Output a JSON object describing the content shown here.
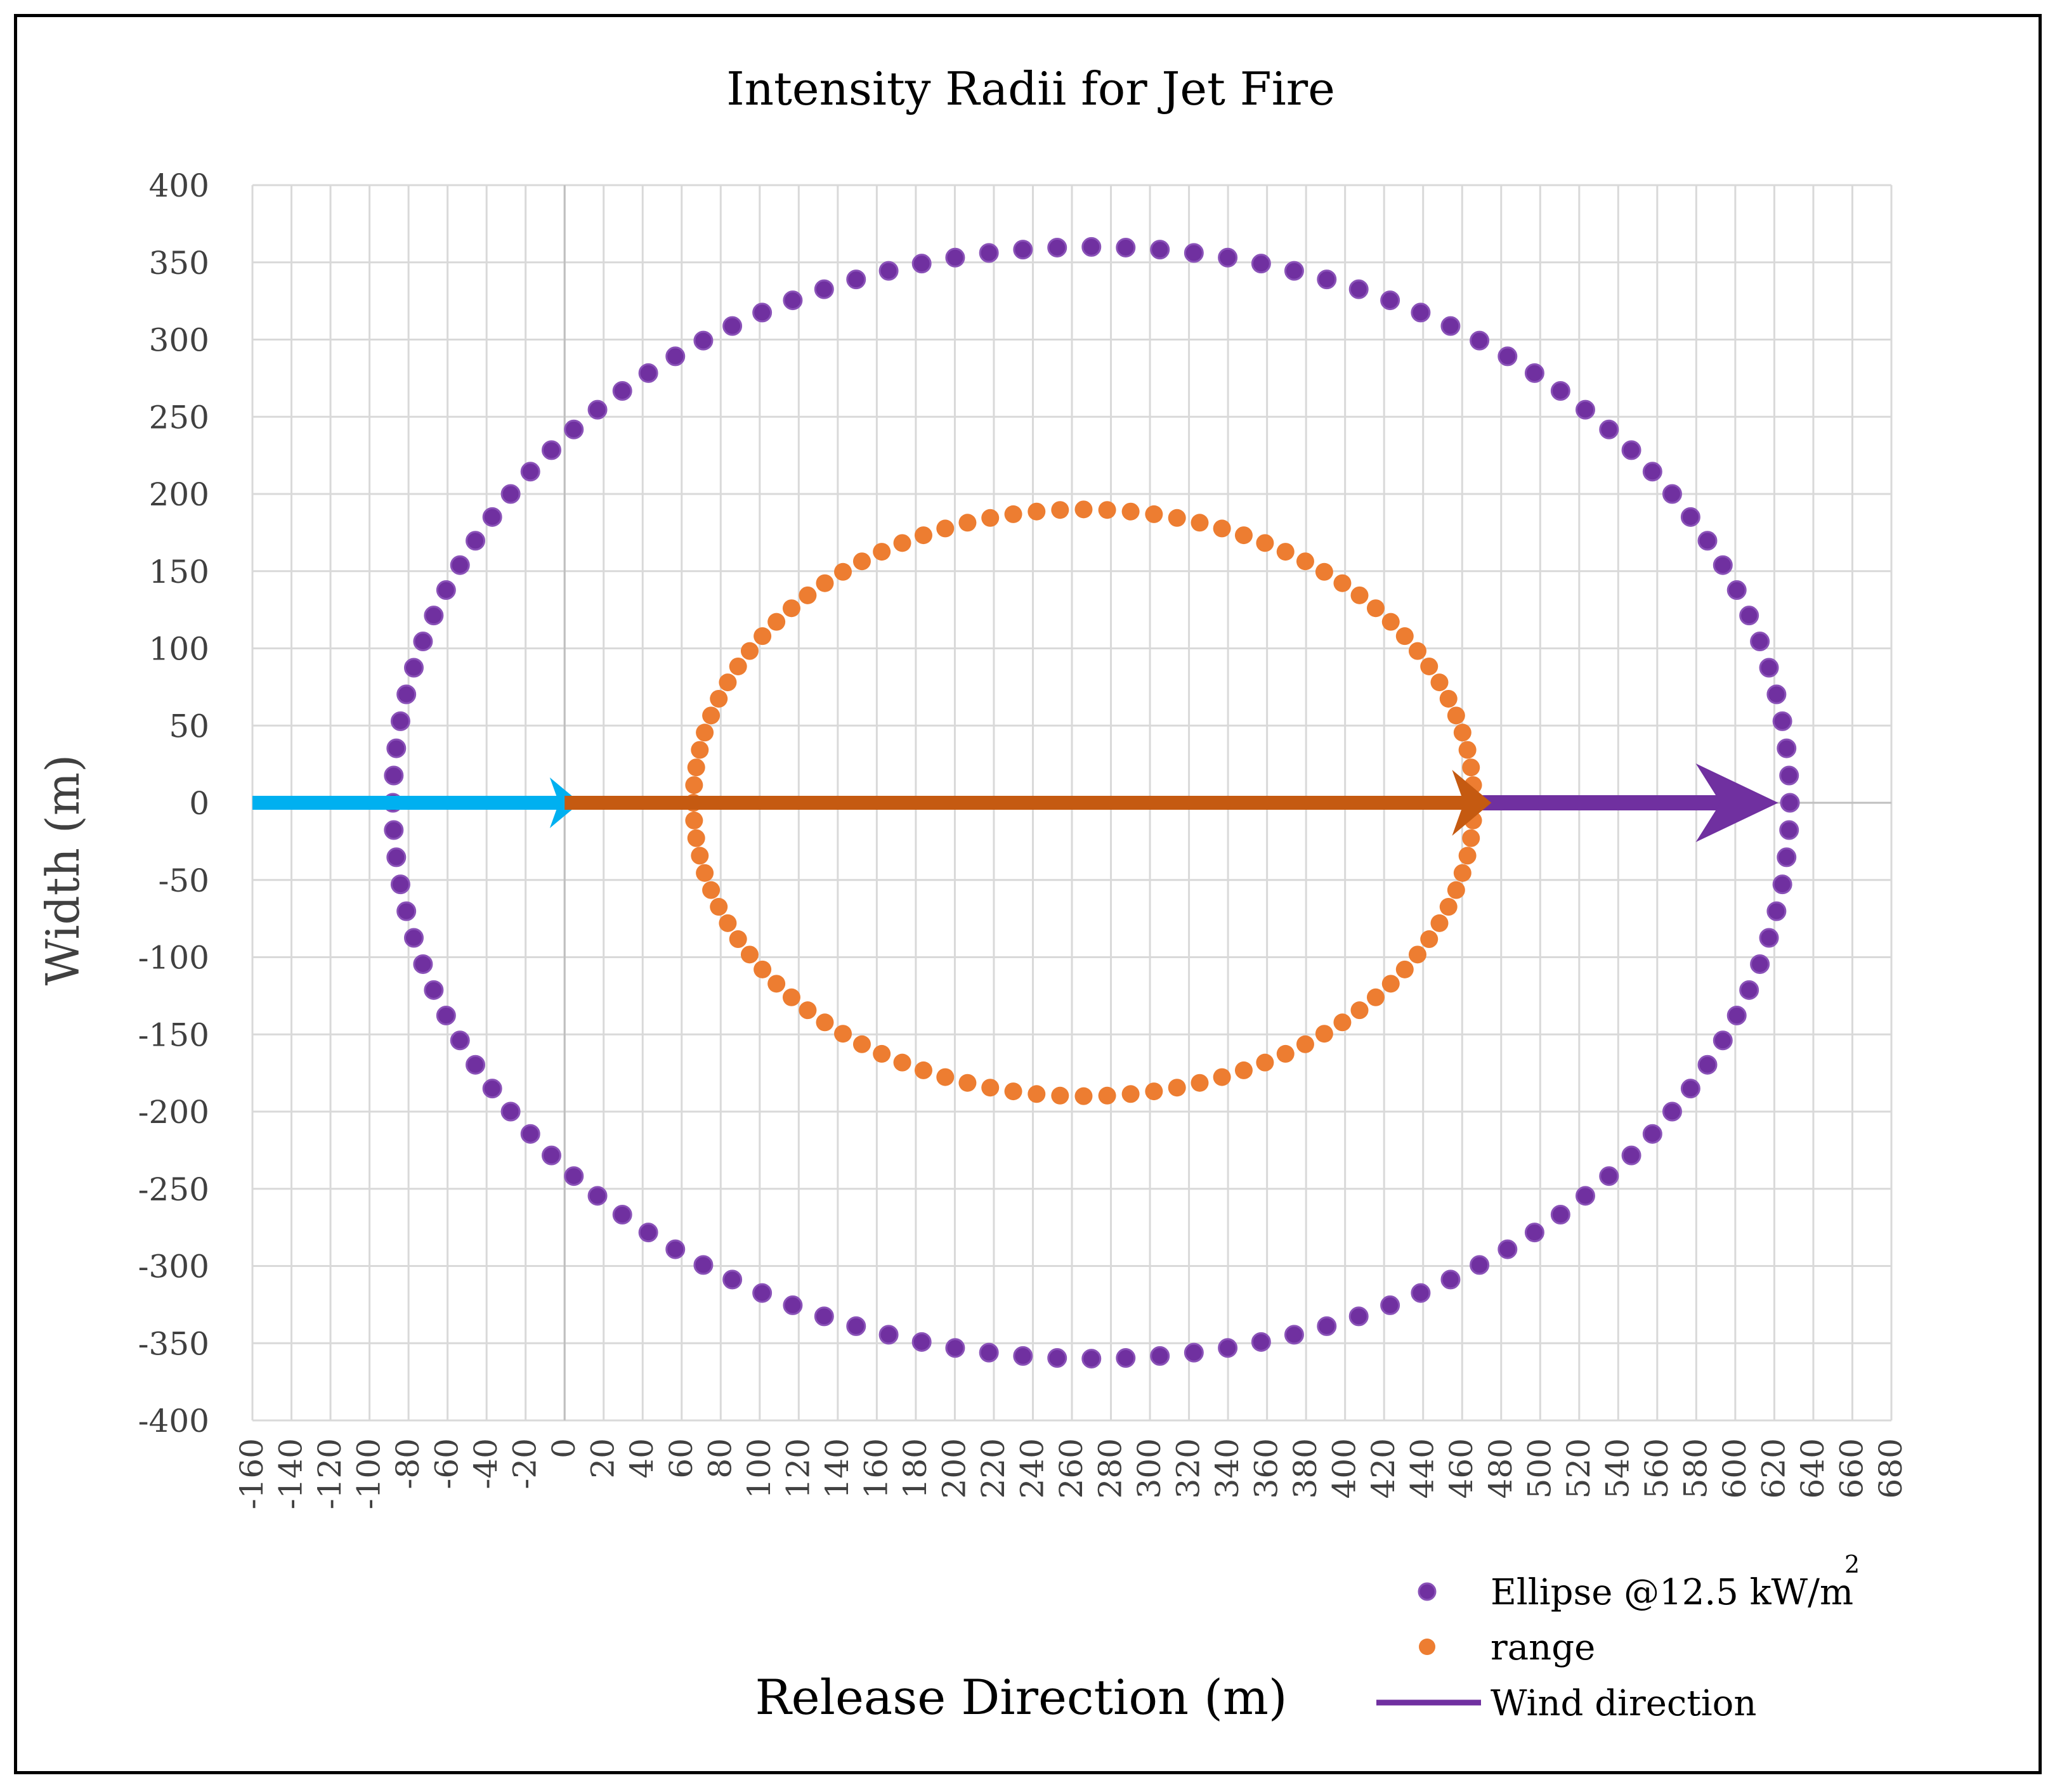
{
  "chart_data": {
    "type": "scatter",
    "title": "Intensity Radii for Jet Fire",
    "xlabel": "Release Direction (m)",
    "ylabel": "Width (m)",
    "xlim": [
      -160,
      680
    ],
    "ylim": [
      -400,
      400
    ],
    "x_ticks": [
      "-160",
      "-140",
      "-120",
      "-100",
      "-80",
      "-60",
      "-40",
      "-20",
      "0",
      "20",
      "40",
      "60",
      "80",
      "100",
      "120",
      "140",
      "160",
      "180",
      "200",
      "220",
      "240",
      "260",
      "280",
      "300",
      "320",
      "340",
      "360",
      "380",
      "400",
      "420",
      "440",
      "460",
      "480",
      "500",
      "520",
      "540",
      "560",
      "580",
      "600",
      "620",
      "640",
      "660",
      "680"
    ],
    "y_ticks": [
      "400",
      "350",
      "300",
      "250",
      "200",
      "150",
      "100",
      "50",
      "0",
      "-50",
      "-100",
      "-150",
      "-200",
      "-250",
      "-300",
      "-350",
      "-400"
    ],
    "grid": true,
    "legend_position": "bottom-right",
    "series": [
      {
        "name": "Ellipse @12.5 kW/m",
        "name_superscript": "2",
        "kind": "scatter",
        "color": "#7030A0",
        "shape": "ellipse",
        "center": [
          270,
          0
        ],
        "radius_x": 358,
        "radius_y": 360,
        "x_min": -88,
        "x_max": 628,
        "point_count": 128
      },
      {
        "name": "range",
        "kind": "scatter",
        "color": "#ED7D31",
        "shape": "ellipse",
        "center": [
          266,
          0
        ],
        "radius_x": 200,
        "radius_y": 190,
        "x_min": 66,
        "x_max": 466,
        "point_count": 104
      },
      {
        "name": "Wind direction",
        "kind": "line",
        "color": "#7030A0",
        "points": [
          [
            470,
            0
          ],
          [
            622,
            0
          ]
        ],
        "arrowhead": "end"
      }
    ],
    "arrows": [
      {
        "color": "#00B0F0",
        "from": [
          -160,
          0
        ],
        "to": [
          8,
          0
        ]
      },
      {
        "color": "#C55A11",
        "from": [
          0,
          0
        ],
        "to": [
          475,
          0
        ]
      }
    ]
  }
}
